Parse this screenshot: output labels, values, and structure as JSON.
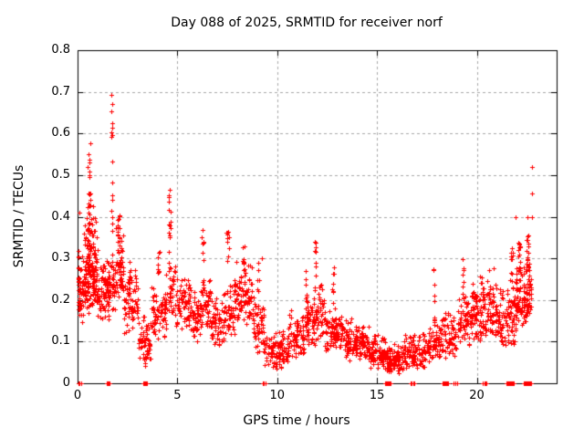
{
  "chart_data": {
    "type": "scatter",
    "title": "Day 088 of 2025, SRMTID for receiver norf",
    "xlabel": "GPS time / hours",
    "ylabel": "SRMTID / TECUs",
    "xlim": [
      0,
      24
    ],
    "ylim": [
      0,
      0.8
    ],
    "xticks": [
      0,
      5,
      10,
      15,
      20
    ],
    "yticks": [
      0,
      0.1,
      0.2,
      0.3,
      0.4,
      0.5,
      0.6,
      0.7,
      0.8
    ],
    "grid": true,
    "legend": false,
    "marker": {
      "symbol": "plus",
      "color": "#ff0000",
      "size": 5
    },
    "grid_color": "#a8a8a8",
    "border_color": "#000000",
    "background_color": "#ffffff",
    "series_name": "SRMTID",
    "seed": 20250880,
    "bands_format": "[x_start_hours, x_end_hours, y_min_TECUs, y_max_TECUs, point_count]",
    "bands": [
      [
        0.02,
        0.35,
        0.14,
        0.34,
        60
      ],
      [
        0.35,
        0.95,
        0.16,
        0.44,
        160
      ],
      [
        0.95,
        1.55,
        0.15,
        0.3,
        80
      ],
      [
        1.55,
        1.92,
        0.17,
        0.34,
        45
      ],
      [
        1.92,
        2.3,
        0.19,
        0.4,
        60
      ],
      [
        2.3,
        3.05,
        0.12,
        0.28,
        80
      ],
      [
        3.05,
        3.65,
        0.04,
        0.17,
        60
      ],
      [
        3.65,
        4.45,
        0.09,
        0.26,
        70
      ],
      [
        4.45,
        4.95,
        0.14,
        0.3,
        40
      ],
      [
        4.95,
        5.65,
        0.13,
        0.27,
        65
      ],
      [
        5.65,
        6.15,
        0.1,
        0.23,
        55
      ],
      [
        6.15,
        6.65,
        0.12,
        0.26,
        45
      ],
      [
        6.65,
        7.35,
        0.09,
        0.22,
        65
      ],
      [
        7.35,
        7.85,
        0.11,
        0.25,
        45
      ],
      [
        7.85,
        8.75,
        0.14,
        0.3,
        85
      ],
      [
        8.75,
        9.35,
        0.07,
        0.22,
        55
      ],
      [
        9.35,
        10.55,
        0.03,
        0.13,
        100
      ],
      [
        10.55,
        11.35,
        0.06,
        0.18,
        75
      ],
      [
        11.35,
        11.92,
        0.08,
        0.23,
        55
      ],
      [
        11.92,
        12.35,
        0.1,
        0.25,
        40
      ],
      [
        12.35,
        13.35,
        0.07,
        0.19,
        100
      ],
      [
        13.35,
        14.65,
        0.05,
        0.16,
        130
      ],
      [
        14.65,
        15.45,
        0.03,
        0.12,
        90
      ],
      [
        15.45,
        16.35,
        0.02,
        0.1,
        100
      ],
      [
        16.35,
        17.55,
        0.03,
        0.13,
        110
      ],
      [
        17.55,
        18.25,
        0.05,
        0.16,
        65
      ],
      [
        18.25,
        19.05,
        0.06,
        0.18,
        65
      ],
      [
        19.05,
        19.75,
        0.09,
        0.24,
        65
      ],
      [
        19.75,
        21.05,
        0.1,
        0.28,
        150
      ],
      [
        21.05,
        21.95,
        0.08,
        0.26,
        90
      ],
      [
        21.95,
        22.45,
        0.13,
        0.31,
        65
      ],
      [
        22.45,
        22.72,
        0.15,
        0.3,
        40
      ]
    ],
    "spikes_format": "[x_hours, y_min, y_max, point_count, x_jitter]",
    "spikes": [
      [
        0.55,
        0.36,
        0.46,
        14,
        0.08
      ],
      [
        0.62,
        0.44,
        0.59,
        7,
        0.05
      ],
      [
        1.72,
        0.35,
        0.71,
        16,
        0.04
      ],
      [
        2.05,
        0.3,
        0.41,
        10,
        0.05
      ],
      [
        2.65,
        0.24,
        0.33,
        6,
        0.05
      ],
      [
        4.05,
        0.24,
        0.33,
        8,
        0.05
      ],
      [
        4.62,
        0.25,
        0.47,
        20,
        0.07
      ],
      [
        6.28,
        0.22,
        0.38,
        12,
        0.05
      ],
      [
        7.52,
        0.24,
        0.37,
        10,
        0.05
      ],
      [
        8.35,
        0.27,
        0.33,
        7,
        0.07
      ],
      [
        9.05,
        0.15,
        0.3,
        8,
        0.05
      ],
      [
        11.45,
        0.18,
        0.27,
        8,
        0.04
      ],
      [
        11.93,
        0.22,
        0.35,
        12,
        0.04
      ],
      [
        12.8,
        0.18,
        0.28,
        8,
        0.04
      ],
      [
        17.85,
        0.12,
        0.28,
        10,
        0.05
      ],
      [
        19.3,
        0.2,
        0.3,
        8,
        0.05
      ],
      [
        21.75,
        0.24,
        0.33,
        14,
        0.06
      ],
      [
        22.15,
        0.26,
        0.34,
        16,
        0.06
      ],
      [
        22.55,
        0.27,
        0.36,
        16,
        0.06
      ]
    ],
    "outliers_format": "[x_hours, y_TECUs]",
    "outliers": [
      [
        0.1,
        0.41
      ],
      [
        0.3,
        0.36
      ],
      [
        0.5,
        0.52
      ],
      [
        0.55,
        0.55
      ],
      [
        0.6,
        0.5
      ],
      [
        1.0,
        0.32
      ],
      [
        9.25,
        0.3
      ],
      [
        21.95,
        0.4
      ],
      [
        22.55,
        0.4
      ],
      [
        22.75,
        0.4
      ],
      [
        22.75,
        0.455
      ],
      [
        22.75,
        0.52
      ]
    ],
    "zero_clusters_format": "[x_start_hours, x_end_hours, point_count] at y=0",
    "zero_clusters": [
      [
        0.03,
        0.18,
        3
      ],
      [
        1.45,
        1.6,
        4
      ],
      [
        3.28,
        3.48,
        8
      ],
      [
        9.28,
        9.4,
        3
      ],
      [
        15.42,
        15.68,
        8
      ],
      [
        16.68,
        16.88,
        4
      ],
      [
        18.3,
        18.55,
        7
      ],
      [
        18.85,
        19.0,
        3
      ],
      [
        20.3,
        20.5,
        4
      ],
      [
        21.5,
        21.85,
        9
      ],
      [
        22.35,
        22.7,
        12
      ]
    ]
  }
}
